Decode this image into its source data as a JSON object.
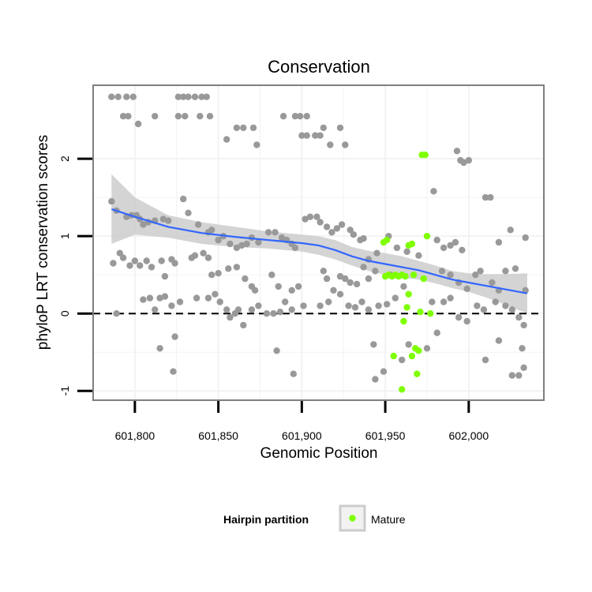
{
  "chart_data": {
    "type": "scatter",
    "title": "Conservation",
    "xlabel": "Genomic Position",
    "ylabel": "phyloP LRT conservation scores",
    "xlim": [
      601775,
      602045
    ],
    "ylim": [
      -1.12,
      2.95
    ],
    "x_ticks": [
      601800,
      601850,
      601900,
      601950,
      602000
    ],
    "x_tick_labels": [
      "601,800",
      "601,850",
      "601,900",
      "601,950",
      "602,000"
    ],
    "y_ticks": [
      -1,
      0,
      1,
      2
    ],
    "y_tick_labels": [
      "-1",
      "0",
      "1",
      "2"
    ],
    "grid": true,
    "reference_line": {
      "y": 0,
      "style": "dashed"
    },
    "legend": {
      "title": "Hairpin partition",
      "entries": [
        "Mature"
      ],
      "position": "bottom"
    },
    "colors": {
      "background_points": "#999999",
      "mature_points": "#7FFF00",
      "smooth_line": "#3366FF",
      "confidence_band": "#CCCCCC",
      "grid": "#F2F2F2",
      "panel_border": "#7F7F7F"
    },
    "series": [
      {
        "role": "background",
        "points": [
          [
            601786,
            2.8
          ],
          [
            601790,
            2.8
          ],
          [
            601795,
            2.8
          ],
          [
            601799,
            2.8
          ],
          [
            601793,
            2.55
          ],
          [
            601796,
            2.55
          ],
          [
            601802,
            2.45
          ],
          [
            601812,
            2.55
          ],
          [
            601826,
            2.8
          ],
          [
            601829,
            2.8
          ],
          [
            601832,
            2.8
          ],
          [
            601836,
            2.8
          ],
          [
            601840,
            2.8
          ],
          [
            601843,
            2.8
          ],
          [
            601826,
            2.55
          ],
          [
            601830,
            2.55
          ],
          [
            601839,
            2.55
          ],
          [
            601845,
            2.55
          ],
          [
            601855,
            2.25
          ],
          [
            601861,
            2.4
          ],
          [
            601865,
            2.4
          ],
          [
            601871,
            2.4
          ],
          [
            601873,
            2.18
          ],
          [
            601889,
            2.55
          ],
          [
            601896,
            2.55
          ],
          [
            601899,
            2.55
          ],
          [
            601903,
            2.55
          ],
          [
            601900,
            2.3
          ],
          [
            601903,
            2.3
          ],
          [
            601908,
            2.3
          ],
          [
            601911,
            2.3
          ],
          [
            601913,
            2.4
          ],
          [
            601917,
            2.18
          ],
          [
            601923,
            2.4
          ],
          [
            601926,
            2.18
          ],
          [
            601786,
            1.45
          ],
          [
            601789,
            1.33
          ],
          [
            601795,
            1.25
          ],
          [
            601798,
            1.27
          ],
          [
            601801,
            1.27
          ],
          [
            601803,
            1.22
          ],
          [
            601805,
            1.15
          ],
          [
            601808,
            1.18
          ],
          [
            601812,
            1.2
          ],
          [
            601817,
            1.22
          ],
          [
            601820,
            1.2
          ],
          [
            601829,
            1.48
          ],
          [
            601832,
            1.3
          ],
          [
            601838,
            1.15
          ],
          [
            601844,
            1.05
          ],
          [
            601846,
            1.08
          ],
          [
            601850,
            0.95
          ],
          [
            601853,
            1.0
          ],
          [
            601857,
            0.9
          ],
          [
            601861,
            0.85
          ],
          [
            601864,
            0.88
          ],
          [
            601867,
            0.9
          ],
          [
            601870,
            0.98
          ],
          [
            601874,
            0.92
          ],
          [
            601880,
            1.05
          ],
          [
            601884,
            1.05
          ],
          [
            601888,
            0.98
          ],
          [
            601891,
            0.95
          ],
          [
            601894,
            0.9
          ],
          [
            601896,
            0.85
          ],
          [
            601902,
            1.22
          ],
          [
            601905,
            1.25
          ],
          [
            601909,
            1.25
          ],
          [
            601911,
            1.18
          ],
          [
            601915,
            1.12
          ],
          [
            601918,
            1.05
          ],
          [
            601921,
            1.1
          ],
          [
            601924,
            1.15
          ],
          [
            601929,
            1.08
          ],
          [
            601931,
            1.02
          ],
          [
            601935,
            0.95
          ],
          [
            601937,
            0.97
          ],
          [
            601940,
            0.7
          ],
          [
            601945,
            0.78
          ],
          [
            601952,
            1.0
          ],
          [
            601957,
            0.85
          ],
          [
            601963,
            0.8
          ],
          [
            601970,
            0.75
          ],
          [
            601979,
            1.58
          ],
          [
            601981,
            0.95
          ],
          [
            601985,
            0.85
          ],
          [
            601989,
            0.88
          ],
          [
            601992,
            0.92
          ],
          [
            601996,
            0.82
          ],
          [
            601993,
            2.1
          ],
          [
            601995,
            1.98
          ],
          [
            601997,
            1.95
          ],
          [
            602000,
            1.98
          ],
          [
            602010,
            1.5
          ],
          [
            602013,
            1.5
          ],
          [
            602018,
            0.92
          ],
          [
            602025,
            1.08
          ],
          [
            602034,
            0.98
          ],
          [
            601787,
            0.65
          ],
          [
            601791,
            0.78
          ],
          [
            601793,
            0.72
          ],
          [
            601797,
            0.62
          ],
          [
            601800,
            0.68
          ],
          [
            601803,
            0.62
          ],
          [
            601807,
            0.68
          ],
          [
            601810,
            0.6
          ],
          [
            601816,
            0.68
          ],
          [
            601818,
            0.48
          ],
          [
            601822,
            0.7
          ],
          [
            601824,
            0.65
          ],
          [
            601834,
            0.72
          ],
          [
            601836,
            0.75
          ],
          [
            601841,
            0.78
          ],
          [
            601844,
            0.72
          ],
          [
            601846,
            0.5
          ],
          [
            601850,
            0.52
          ],
          [
            601856,
            0.58
          ],
          [
            601861,
            0.6
          ],
          [
            601866,
            0.45
          ],
          [
            601870,
            0.35
          ],
          [
            601872,
            0.3
          ],
          [
            601882,
            0.5
          ],
          [
            601886,
            0.35
          ],
          [
            601894,
            0.3
          ],
          [
            601898,
            0.35
          ],
          [
            601913,
            0.55
          ],
          [
            601915,
            0.45
          ],
          [
            601919,
            0.3
          ],
          [
            601923,
            0.48
          ],
          [
            601926,
            0.45
          ],
          [
            601929,
            0.4
          ],
          [
            601933,
            0.38
          ],
          [
            601937,
            0.6
          ],
          [
            601940,
            0.45
          ],
          [
            601944,
            0.55
          ],
          [
            601953,
            0.5
          ],
          [
            601961,
            0.35
          ],
          [
            601984,
            0.55
          ],
          [
            601989,
            0.5
          ],
          [
            601994,
            0.4
          ],
          [
            601999,
            0.32
          ],
          [
            602004,
            0.5
          ],
          [
            602007,
            0.55
          ],
          [
            602014,
            0.4
          ],
          [
            602018,
            0.3
          ],
          [
            602022,
            0.55
          ],
          [
            602028,
            0.58
          ],
          [
            602034,
            0.3
          ],
          [
            601789,
            0.0
          ],
          [
            601805,
            0.18
          ],
          [
            601809,
            0.2
          ],
          [
            601812,
            0.05
          ],
          [
            601815,
            0.2
          ],
          [
            601818,
            0.22
          ],
          [
            601822,
            0.1
          ],
          [
            601827,
            0.15
          ],
          [
            601837,
            0.2
          ],
          [
            601844,
            0.2
          ],
          [
            601848,
            0.25
          ],
          [
            601851,
            0.15
          ],
          [
            601855,
            0.05
          ],
          [
            601857,
            -0.05
          ],
          [
            601860,
            0.0
          ],
          [
            601862,
            0.05
          ],
          [
            601865,
            -0.15
          ],
          [
            601870,
            0.05
          ],
          [
            601874,
            0.1
          ],
          [
            601879,
            0.0
          ],
          [
            601883,
            0.0
          ],
          [
            601887,
            0.02
          ],
          [
            601890,
            0.15
          ],
          [
            601894,
            0.05
          ],
          [
            601901,
            0.1
          ],
          [
            601911,
            0.1
          ],
          [
            601916,
            0.15
          ],
          [
            601923,
            0.25
          ],
          [
            601928,
            0.1
          ],
          [
            601932,
            0.08
          ],
          [
            601936,
            0.15
          ],
          [
            601940,
            0.05
          ],
          [
            601946,
            0.1
          ],
          [
            601951,
            0.12
          ],
          [
            601956,
            0.2
          ],
          [
            601978,
            0.15
          ],
          [
            601985,
            0.15
          ],
          [
            601989,
            0.2
          ],
          [
            601994,
            -0.05
          ],
          [
            601999,
            -0.1
          ],
          [
            602005,
            0.1
          ],
          [
            602009,
            0.05
          ],
          [
            602016,
            0.15
          ],
          [
            602022,
            0.1
          ],
          [
            602026,
            0.05
          ],
          [
            602030,
            -0.05
          ],
          [
            602033,
            -0.15
          ],
          [
            601815,
            -0.45
          ],
          [
            601824,
            -0.3
          ],
          [
            601823,
            -0.75
          ],
          [
            601885,
            -0.48
          ],
          [
            601895,
            -0.78
          ],
          [
            601943,
            -0.4
          ],
          [
            601944,
            -0.85
          ],
          [
            601949,
            -0.75
          ],
          [
            601960,
            -0.6
          ],
          [
            601964,
            -0.4
          ],
          [
            601975,
            -0.45
          ],
          [
            601981,
            -0.25
          ],
          [
            602010,
            -0.6
          ],
          [
            602018,
            -0.35
          ],
          [
            602026,
            -0.8
          ],
          [
            602030,
            -0.8
          ],
          [
            602032,
            -0.45
          ],
          [
            602033,
            -0.7
          ]
        ]
      },
      {
        "name": "Mature",
        "role": "mature",
        "points": [
          [
            601972,
            2.05
          ],
          [
            601974,
            2.05
          ],
          [
            601975,
            1.0
          ],
          [
            601949,
            0.92
          ],
          [
            601951,
            0.95
          ],
          [
            601964,
            0.88
          ],
          [
            601966,
            0.9
          ],
          [
            601950,
            0.48
          ],
          [
            601952,
            0.5
          ],
          [
            601954,
            0.48
          ],
          [
            601956,
            0.5
          ],
          [
            601958,
            0.48
          ],
          [
            601960,
            0.5
          ],
          [
            601962,
            0.48
          ],
          [
            601967,
            0.5
          ],
          [
            601973,
            0.45
          ],
          [
            601964,
            0.25
          ],
          [
            601963,
            0.08
          ],
          [
            601961,
            -0.1
          ],
          [
            601971,
            0.02
          ],
          [
            601977,
            0.0
          ],
          [
            601955,
            -0.55
          ],
          [
            601968,
            -0.45
          ],
          [
            601970,
            -0.48
          ],
          [
            601966,
            -0.55
          ],
          [
            601969,
            -0.78
          ],
          [
            601960,
            -0.98
          ]
        ]
      }
    ],
    "smooth": {
      "x": [
        601786,
        601800,
        601820,
        601840,
        601860,
        601880,
        601900,
        601910,
        601920,
        601930,
        601940,
        601950,
        601960,
        601970,
        601980,
        601990,
        602000,
        602010,
        602020,
        602035
      ],
      "y": [
        1.35,
        1.25,
        1.12,
        1.04,
        0.99,
        0.95,
        0.91,
        0.88,
        0.82,
        0.74,
        0.68,
        0.64,
        0.6,
        0.56,
        0.5,
        0.44,
        0.4,
        0.36,
        0.32,
        0.26
      ],
      "lower": [
        0.9,
        1.02,
        0.98,
        0.9,
        0.86,
        0.84,
        0.8,
        0.76,
        0.7,
        0.62,
        0.55,
        0.5,
        0.46,
        0.44,
        0.39,
        0.33,
        0.28,
        0.21,
        0.13,
        0.0
      ],
      "upper": [
        1.8,
        1.5,
        1.27,
        1.18,
        1.12,
        1.06,
        1.02,
        1.0,
        0.95,
        0.86,
        0.81,
        0.78,
        0.74,
        0.68,
        0.62,
        0.55,
        0.52,
        0.51,
        0.51,
        0.52
      ]
    }
  }
}
